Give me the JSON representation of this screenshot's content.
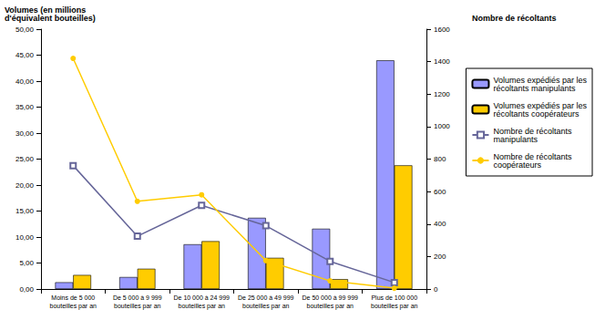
{
  "chart_data": {
    "type": "bar",
    "y_label": "Volumes (en millions\nd'équivalent bouteilles)",
    "y2_label": "Nombre de récoltants",
    "categories": [
      "Moins de 5 000\nbouteilles par an",
      "De 5 000 à 9 999\nbouteilles par an",
      "De 10 000 à 24 999\nbouteilles par an",
      "De 25 000 à 49 999\nbouteilles par an",
      "De 50 000 à 99 999\nbouteilles par an",
      "Plus de 100 000\nbouteilles par an"
    ],
    "series": [
      {
        "name": "Volumes expédiés par les\nrécoltants manipulants",
        "type": "bar",
        "color": "#9999ff",
        "values": [
          1.3,
          2.3,
          8.6,
          13.7,
          11.6,
          44.0
        ]
      },
      {
        "name": "Volumes expédiés par les\nrécoltants coopérateurs",
        "type": "bar",
        "color": "#ffcc00",
        "values": [
          2.7,
          3.9,
          9.2,
          6.0,
          1.9,
          23.8
        ]
      },
      {
        "name": "Nombre de récoltants\nmanipulants",
        "type": "line",
        "axis": "y2",
        "color": "#666699",
        "marker": "square",
        "values": [
          760,
          325,
          515,
          390,
          170,
          40
        ]
      },
      {
        "name": "Nombre de récoltants\ncoopérateurs",
        "type": "line",
        "axis": "y2",
        "color": "#ffcc00",
        "marker": "circle",
        "values": [
          1420,
          540,
          580,
          175,
          50,
          5
        ]
      }
    ],
    "ylim": [
      0,
      50
    ],
    "yticks": [
      {
        "value": 0,
        "label": "0,00"
      },
      {
        "value": 5,
        "label": "5,00"
      },
      {
        "value": 10,
        "label": "10,00"
      },
      {
        "value": 15,
        "label": "15,00"
      },
      {
        "value": 20,
        "label": "20,00"
      },
      {
        "value": 25,
        "label": "25,00"
      },
      {
        "value": 30,
        "label": "30,00"
      },
      {
        "value": 35,
        "label": "35,00"
      },
      {
        "value": 40,
        "label": "40,00"
      },
      {
        "value": 45,
        "label": "45,00"
      },
      {
        "value": 50,
        "label": "50,00"
      }
    ],
    "y2lim": [
      0,
      1600
    ],
    "y2ticks": [
      0,
      200,
      400,
      600,
      800,
      1000,
      1200,
      1400,
      1600
    ],
    "grid": false,
    "legend": "right"
  }
}
